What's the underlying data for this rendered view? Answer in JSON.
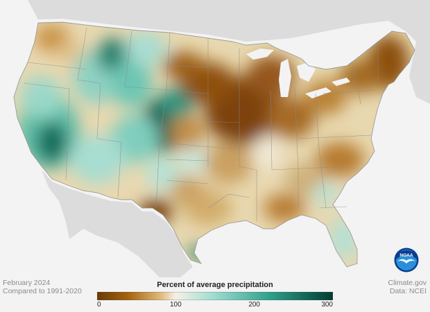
{
  "map": {
    "region": "contiguous-united-states",
    "colors": {
      "background": "#f3f3f3",
      "land_outside": "#dcdcdc",
      "water": "#f3f3f3",
      "state_border": "#8a8a8a",
      "dry_extreme": "#7a4208",
      "dry": "#c98f3d",
      "normal": "#f3efe4",
      "wet": "#8fd3c6",
      "wet_extreme": "#013c30"
    },
    "regions": [
      {
        "name": "upper-midwest",
        "anomaly": "dry",
        "percent": 30
      },
      {
        "name": "northeast",
        "anomaly": "dry",
        "percent": 40
      },
      {
        "name": "great-lakes",
        "anomaly": "dry",
        "percent": 35
      },
      {
        "name": "southeast",
        "anomaly": "dry",
        "percent": 60
      },
      {
        "name": "west-texas",
        "anomaly": "dry",
        "percent": 20
      },
      {
        "name": "california",
        "anomaly": "wet",
        "percent": 200
      },
      {
        "name": "colorado-rockies",
        "anomaly": "wet",
        "percent": 260
      },
      {
        "name": "northern-rockies",
        "anomaly": "wet",
        "percent": 220
      },
      {
        "name": "southwest",
        "anomaly": "wet",
        "percent": 160
      },
      {
        "name": "florida",
        "anomaly": "wet",
        "percent": 130
      }
    ]
  },
  "footer": {
    "period": "February 2024",
    "baseline": "Compared to 1991-2020",
    "source_site": "Climate.gov",
    "source_data": "Data: NCEI"
  },
  "legend": {
    "title": "Percent of average precipitation",
    "ticks": [
      "0",
      "100",
      "200",
      "300"
    ],
    "tick_values": [
      0,
      100,
      200,
      300
    ],
    "range": [
      0,
      300
    ],
    "stops": [
      {
        "value": 0,
        "color": "#6b3a06"
      },
      {
        "value": 40,
        "color": "#a4650f"
      },
      {
        "value": 80,
        "color": "#dfb777"
      },
      {
        "value": 100,
        "color": "#f6f1e6"
      },
      {
        "value": 150,
        "color": "#9ddbcf"
      },
      {
        "value": 220,
        "color": "#2fa08a"
      },
      {
        "value": 300,
        "color": "#013c30"
      }
    ]
  },
  "logo": {
    "text": "NOAA",
    "colors": {
      "outer": "#0a3d8f",
      "inner": "#2a8fd8",
      "gull": "#ffffff"
    }
  }
}
